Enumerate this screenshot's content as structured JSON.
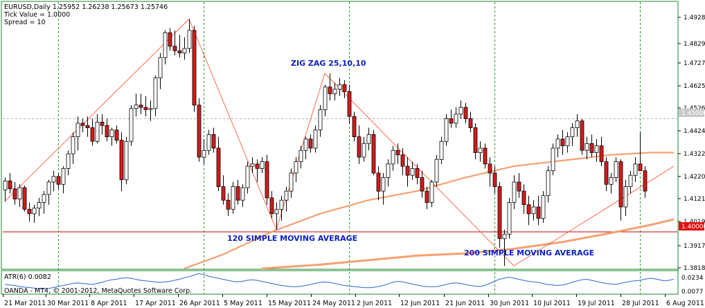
{
  "header": {
    "line1": "EURUSD,Daily  1.25952 1.26238 1.25673 1.25746",
    "line2": "Tick Value = 1.0000",
    "line3": "Spread = 10"
  },
  "annotations": {
    "zigzag": "ZIG ZAG 25,10,10",
    "sma120": "120 SIMPLE MOVING AVERAGE",
    "sma200": "200 SIMPLE MOVING AVERAGE"
  },
  "colors": {
    "frame": "#1a8a2a",
    "grid": "#1e9a2a",
    "bull": "#ffffff",
    "bear": "#d61a1a",
    "wick": "#000000",
    "zigzag": "#ff5a3a",
    "sma": "#f5a070",
    "hline": "#cc0000",
    "atr": "#2a66d6",
    "label": "#0a1ec8"
  },
  "chart_data": {
    "type": "candlestick",
    "symbol": "EURUSD",
    "timeframe": "Daily",
    "ylim": [
      1.3838,
      1.5015
    ],
    "y_ticks": [
      "1.49280",
      "1.48290",
      "1.47270",
      "1.46250",
      "1.45260",
      "1.44240",
      "1.43220",
      "1.42200",
      "1.41210",
      "1.40190",
      "1.39170",
      "1.38180"
    ],
    "x_ticks": [
      "21 Mar 2011",
      "30 Mar 2011",
      "8 Apr 2011",
      "17 Apr 2011",
      "26 Apr 2011",
      "5 May 2011",
      "15 May 2011",
      "24 May 2011",
      "2 Jun 2011",
      "12 Jun 2011",
      "21 Jun 2011",
      "30 Jun 2011",
      "10 Jul 2011",
      "19 Jul 2011",
      "28 Jul 2011",
      "6 Aug 2011"
    ],
    "price_marker_upper": "1.45000",
    "price_marker_lower": "1.40000",
    "candles": [
      {
        "o": 1.4185,
        "h": 1.424,
        "l": 1.4135,
        "c": 1.4225
      },
      {
        "o": 1.4225,
        "h": 1.426,
        "l": 1.417,
        "c": 1.419
      },
      {
        "o": 1.419,
        "h": 1.422,
        "l": 1.412,
        "c": 1.4145
      },
      {
        "o": 1.4145,
        "h": 1.421,
        "l": 1.411,
        "c": 1.4195
      },
      {
        "o": 1.4195,
        "h": 1.4205,
        "l": 1.409,
        "c": 1.41
      },
      {
        "o": 1.41,
        "h": 1.413,
        "l": 1.4045,
        "c": 1.408
      },
      {
        "o": 1.408,
        "h": 1.412,
        "l": 1.404,
        "c": 1.4105
      },
      {
        "o": 1.4105,
        "h": 1.415,
        "l": 1.407,
        "c": 1.413
      },
      {
        "o": 1.413,
        "h": 1.418,
        "l": 1.408,
        "c": 1.4165
      },
      {
        "o": 1.4165,
        "h": 1.423,
        "l": 1.412,
        "c": 1.422
      },
      {
        "o": 1.422,
        "h": 1.427,
        "l": 1.418,
        "c": 1.4245
      },
      {
        "o": 1.4245,
        "h": 1.426,
        "l": 1.419,
        "c": 1.421
      },
      {
        "o": 1.421,
        "h": 1.429,
        "l": 1.417,
        "c": 1.428
      },
      {
        "o": 1.428,
        "h": 1.436,
        "l": 1.425,
        "c": 1.4345
      },
      {
        "o": 1.4345,
        "h": 1.444,
        "l": 1.43,
        "c": 1.442
      },
      {
        "o": 1.442,
        "h": 1.451,
        "l": 1.436,
        "c": 1.448
      },
      {
        "o": 1.448,
        "h": 1.45,
        "l": 1.444,
        "c": 1.447
      },
      {
        "o": 1.447,
        "h": 1.451,
        "l": 1.442,
        "c": 1.446
      },
      {
        "o": 1.446,
        "h": 1.45,
        "l": 1.438,
        "c": 1.44
      },
      {
        "o": 1.44,
        "h": 1.452,
        "l": 1.439,
        "c": 1.4485
      },
      {
        "o": 1.4485,
        "h": 1.452,
        "l": 1.443,
        "c": 1.447
      },
      {
        "o": 1.447,
        "h": 1.45,
        "l": 1.44,
        "c": 1.442
      },
      {
        "o": 1.442,
        "h": 1.446,
        "l": 1.438,
        "c": 1.445
      },
      {
        "o": 1.445,
        "h": 1.447,
        "l": 1.439,
        "c": 1.4405
      },
      {
        "o": 1.4405,
        "h": 1.444,
        "l": 1.418,
        "c": 1.423
      },
      {
        "o": 1.423,
        "h": 1.442,
        "l": 1.421,
        "c": 1.44
      },
      {
        "o": 1.44,
        "h": 1.456,
        "l": 1.438,
        "c": 1.4545
      },
      {
        "o": 1.4545,
        "h": 1.461,
        "l": 1.451,
        "c": 1.456
      },
      {
        "o": 1.456,
        "h": 1.461,
        "l": 1.452,
        "c": 1.455
      },
      {
        "o": 1.455,
        "h": 1.46,
        "l": 1.451,
        "c": 1.454
      },
      {
        "o": 1.454,
        "h": 1.458,
        "l": 1.449,
        "c": 1.4545
      },
      {
        "o": 1.4545,
        "h": 1.469,
        "l": 1.451,
        "c": 1.468
      },
      {
        "o": 1.468,
        "h": 1.479,
        "l": 1.463,
        "c": 1.477
      },
      {
        "o": 1.477,
        "h": 1.489,
        "l": 1.474,
        "c": 1.488
      },
      {
        "o": 1.488,
        "h": 1.49,
        "l": 1.48,
        "c": 1.482
      },
      {
        "o": 1.482,
        "h": 1.489,
        "l": 1.478,
        "c": 1.48
      },
      {
        "o": 1.48,
        "h": 1.487,
        "l": 1.477,
        "c": 1.479
      },
      {
        "o": 1.479,
        "h": 1.486,
        "l": 1.476,
        "c": 1.481
      },
      {
        "o": 1.481,
        "h": 1.494,
        "l": 1.479,
        "c": 1.489
      },
      {
        "o": 1.489,
        "h": 1.491,
        "l": 1.453,
        "c": 1.456
      },
      {
        "o": 1.456,
        "h": 1.459,
        "l": 1.431,
        "c": 1.433
      },
      {
        "o": 1.433,
        "h": 1.441,
        "l": 1.43,
        "c": 1.436
      },
      {
        "o": 1.436,
        "h": 1.445,
        "l": 1.434,
        "c": 1.443
      },
      {
        "o": 1.443,
        "h": 1.446,
        "l": 1.435,
        "c": 1.437
      },
      {
        "o": 1.437,
        "h": 1.442,
        "l": 1.418,
        "c": 1.42
      },
      {
        "o": 1.42,
        "h": 1.425,
        "l": 1.412,
        "c": 1.414
      },
      {
        "o": 1.414,
        "h": 1.417,
        "l": 1.407,
        "c": 1.41
      },
      {
        "o": 1.41,
        "h": 1.422,
        "l": 1.408,
        "c": 1.42
      },
      {
        "o": 1.42,
        "h": 1.423,
        "l": 1.412,
        "c": 1.414
      },
      {
        "o": 1.414,
        "h": 1.421,
        "l": 1.411,
        "c": 1.4195
      },
      {
        "o": 1.4195,
        "h": 1.431,
        "l": 1.417,
        "c": 1.429
      },
      {
        "o": 1.429,
        "h": 1.433,
        "l": 1.426,
        "c": 1.43
      },
      {
        "o": 1.43,
        "h": 1.432,
        "l": 1.422,
        "c": 1.428
      },
      {
        "o": 1.428,
        "h": 1.433,
        "l": 1.426,
        "c": 1.431
      },
      {
        "o": 1.431,
        "h": 1.434,
        "l": 1.412,
        "c": 1.415
      },
      {
        "o": 1.415,
        "h": 1.418,
        "l": 1.406,
        "c": 1.408
      },
      {
        "o": 1.408,
        "h": 1.413,
        "l": 1.401,
        "c": 1.41
      },
      {
        "o": 1.41,
        "h": 1.416,
        "l": 1.405,
        "c": 1.414
      },
      {
        "o": 1.414,
        "h": 1.42,
        "l": 1.409,
        "c": 1.418
      },
      {
        "o": 1.418,
        "h": 1.428,
        "l": 1.415,
        "c": 1.426
      },
      {
        "o": 1.426,
        "h": 1.433,
        "l": 1.422,
        "c": 1.431
      },
      {
        "o": 1.431,
        "h": 1.438,
        "l": 1.428,
        "c": 1.436
      },
      {
        "o": 1.436,
        "h": 1.442,
        "l": 1.432,
        "c": 1.441
      },
      {
        "o": 1.441,
        "h": 1.443,
        "l": 1.435,
        "c": 1.437
      },
      {
        "o": 1.437,
        "h": 1.447,
        "l": 1.435,
        "c": 1.445
      },
      {
        "o": 1.445,
        "h": 1.456,
        "l": 1.442,
        "c": 1.454
      },
      {
        "o": 1.454,
        "h": 1.465,
        "l": 1.451,
        "c": 1.464
      },
      {
        "o": 1.464,
        "h": 1.47,
        "l": 1.458,
        "c": 1.461
      },
      {
        "o": 1.461,
        "h": 1.466,
        "l": 1.458,
        "c": 1.463
      },
      {
        "o": 1.463,
        "h": 1.468,
        "l": 1.46,
        "c": 1.465
      },
      {
        "o": 1.465,
        "h": 1.467,
        "l": 1.459,
        "c": 1.462
      },
      {
        "o": 1.462,
        "h": 1.465,
        "l": 1.448,
        "c": 1.451
      },
      {
        "o": 1.451,
        "h": 1.453,
        "l": 1.44,
        "c": 1.442
      },
      {
        "o": 1.442,
        "h": 1.447,
        "l": 1.43,
        "c": 1.433
      },
      {
        "o": 1.433,
        "h": 1.442,
        "l": 1.431,
        "c": 1.439
      },
      {
        "o": 1.439,
        "h": 1.446,
        "l": 1.436,
        "c": 1.443
      },
      {
        "o": 1.443,
        "h": 1.445,
        "l": 1.425,
        "c": 1.426
      },
      {
        "o": 1.426,
        "h": 1.429,
        "l": 1.414,
        "c": 1.418
      },
      {
        "o": 1.418,
        "h": 1.426,
        "l": 1.412,
        "c": 1.424
      },
      {
        "o": 1.424,
        "h": 1.432,
        "l": 1.42,
        "c": 1.43
      },
      {
        "o": 1.43,
        "h": 1.438,
        "l": 1.427,
        "c": 1.436
      },
      {
        "o": 1.436,
        "h": 1.439,
        "l": 1.43,
        "c": 1.434
      },
      {
        "o": 1.434,
        "h": 1.437,
        "l": 1.425,
        "c": 1.429
      },
      {
        "o": 1.429,
        "h": 1.433,
        "l": 1.42,
        "c": 1.425
      },
      {
        "o": 1.425,
        "h": 1.431,
        "l": 1.423,
        "c": 1.428
      },
      {
        "o": 1.428,
        "h": 1.43,
        "l": 1.421,
        "c": 1.424
      },
      {
        "o": 1.424,
        "h": 1.427,
        "l": 1.415,
        "c": 1.418
      },
      {
        "o": 1.418,
        "h": 1.42,
        "l": 1.41,
        "c": 1.413
      },
      {
        "o": 1.413,
        "h": 1.423,
        "l": 1.411,
        "c": 1.422
      },
      {
        "o": 1.422,
        "h": 1.434,
        "l": 1.42,
        "c": 1.432
      },
      {
        "o": 1.432,
        "h": 1.442,
        "l": 1.43,
        "c": 1.44
      },
      {
        "o": 1.44,
        "h": 1.452,
        "l": 1.438,
        "c": 1.45
      },
      {
        "o": 1.45,
        "h": 1.454,
        "l": 1.446,
        "c": 1.448
      },
      {
        "o": 1.448,
        "h": 1.455,
        "l": 1.446,
        "c": 1.452
      },
      {
        "o": 1.452,
        "h": 1.458,
        "l": 1.45,
        "c": 1.455
      },
      {
        "o": 1.455,
        "h": 1.457,
        "l": 1.448,
        "c": 1.45
      },
      {
        "o": 1.45,
        "h": 1.453,
        "l": 1.444,
        "c": 1.446
      },
      {
        "o": 1.446,
        "h": 1.448,
        "l": 1.432,
        "c": 1.435
      },
      {
        "o": 1.435,
        "h": 1.44,
        "l": 1.431,
        "c": 1.437
      },
      {
        "o": 1.437,
        "h": 1.439,
        "l": 1.428,
        "c": 1.43
      },
      {
        "o": 1.43,
        "h": 1.433,
        "l": 1.42,
        "c": 1.426
      },
      {
        "o": 1.426,
        "h": 1.429,
        "l": 1.417,
        "c": 1.42
      },
      {
        "o": 1.42,
        "h": 1.422,
        "l": 1.393,
        "c": 1.397
      },
      {
        "o": 1.397,
        "h": 1.401,
        "l": 1.385,
        "c": 1.399
      },
      {
        "o": 1.399,
        "h": 1.415,
        "l": 1.397,
        "c": 1.413
      },
      {
        "o": 1.413,
        "h": 1.425,
        "l": 1.41,
        "c": 1.422
      },
      {
        "o": 1.422,
        "h": 1.426,
        "l": 1.415,
        "c": 1.418
      },
      {
        "o": 1.418,
        "h": 1.421,
        "l": 1.408,
        "c": 1.412
      },
      {
        "o": 1.412,
        "h": 1.416,
        "l": 1.403,
        "c": 1.408
      },
      {
        "o": 1.408,
        "h": 1.414,
        "l": 1.405,
        "c": 1.411
      },
      {
        "o": 1.411,
        "h": 1.416,
        "l": 1.403,
        "c": 1.406
      },
      {
        "o": 1.406,
        "h": 1.418,
        "l": 1.404,
        "c": 1.416
      },
      {
        "o": 1.416,
        "h": 1.429,
        "l": 1.413,
        "c": 1.427
      },
      {
        "o": 1.427,
        "h": 1.439,
        "l": 1.425,
        "c": 1.437
      },
      {
        "o": 1.437,
        "h": 1.443,
        "l": 1.433,
        "c": 1.441
      },
      {
        "o": 1.441,
        "h": 1.445,
        "l": 1.434,
        "c": 1.438
      },
      {
        "o": 1.438,
        "h": 1.444,
        "l": 1.435,
        "c": 1.442
      },
      {
        "o": 1.442,
        "h": 1.448,
        "l": 1.438,
        "c": 1.446
      },
      {
        "o": 1.446,
        "h": 1.452,
        "l": 1.442,
        "c": 1.449
      },
      {
        "o": 1.449,
        "h": 1.45,
        "l": 1.434,
        "c": 1.436
      },
      {
        "o": 1.436,
        "h": 1.442,
        "l": 1.432,
        "c": 1.439
      },
      {
        "o": 1.439,
        "h": 1.443,
        "l": 1.433,
        "c": 1.435
      },
      {
        "o": 1.435,
        "h": 1.441,
        "l": 1.431,
        "c": 1.438
      },
      {
        "o": 1.438,
        "h": 1.442,
        "l": 1.429,
        "c": 1.431
      },
      {
        "o": 1.431,
        "h": 1.433,
        "l": 1.418,
        "c": 1.421
      },
      {
        "o": 1.421,
        "h": 1.426,
        "l": 1.417,
        "c": 1.424
      },
      {
        "o": 1.424,
        "h": 1.433,
        "l": 1.422,
        "c": 1.431
      },
      {
        "o": 1.431,
        "h": 1.432,
        "l": 1.405,
        "c": 1.411
      },
      {
        "o": 1.411,
        "h": 1.423,
        "l": 1.407,
        "c": 1.42
      },
      {
        "o": 1.42,
        "h": 1.427,
        "l": 1.417,
        "c": 1.425
      },
      {
        "o": 1.425,
        "h": 1.433,
        "l": 1.422,
        "c": 1.43
      },
      {
        "o": 1.43,
        "h": 1.444,
        "l": 1.427,
        "c": 1.427
      },
      {
        "o": 1.427,
        "h": 1.429,
        "l": 1.415,
        "c": 1.418
      }
    ],
    "zigzag": [
      {
        "i": 0,
        "p": 1.4135
      },
      {
        "i": 38,
        "p": 1.494
      },
      {
        "i": 56,
        "p": 1.401
      },
      {
        "i": 66,
        "p": 1.47
      },
      {
        "i": 105,
        "p": 1.385
      },
      {
        "i": 138,
        "p": 1.429
      }
    ],
    "sma120": [
      {
        "i": 37,
        "p": 1.3838
      },
      {
        "i": 45,
        "p": 1.39
      },
      {
        "i": 55,
        "p": 1.4
      },
      {
        "i": 65,
        "p": 1.408
      },
      {
        "i": 75,
        "p": 1.414
      },
      {
        "i": 85,
        "p": 1.418
      },
      {
        "i": 95,
        "p": 1.424
      },
      {
        "i": 105,
        "p": 1.429
      },
      {
        "i": 115,
        "p": 1.4315
      },
      {
        "i": 125,
        "p": 1.434
      },
      {
        "i": 133,
        "p": 1.435
      },
      {
        "i": 138,
        "p": 1.435
      }
    ],
    "sma200": [
      {
        "i": 53,
        "p": 1.3838
      },
      {
        "i": 65,
        "p": 1.3855
      },
      {
        "i": 75,
        "p": 1.3875
      },
      {
        "i": 85,
        "p": 1.3895
      },
      {
        "i": 95,
        "p": 1.3905
      },
      {
        "i": 105,
        "p": 1.3925
      },
      {
        "i": 115,
        "p": 1.3955
      },
      {
        "i": 125,
        "p": 1.3995
      },
      {
        "i": 133,
        "p": 1.403
      },
      {
        "i": 138,
        "p": 1.4055
      }
    ],
    "atr": {
      "label": "ATR(6) 0.0082",
      "ticks": [
        "0.0234",
        "0.0077"
      ],
      "range": [
        0.006,
        0.026
      ],
      "values": [
        0.014,
        0.0135,
        0.013,
        0.012,
        0.0115,
        0.011,
        0.0105,
        0.01,
        0.0098,
        0.0102,
        0.011,
        0.012,
        0.013,
        0.014,
        0.015,
        0.0155,
        0.015,
        0.0145,
        0.014,
        0.015,
        0.016,
        0.0175,
        0.0185,
        0.019,
        0.02,
        0.0205,
        0.02,
        0.019,
        0.018,
        0.0175,
        0.017,
        0.0165,
        0.016,
        0.0165,
        0.017,
        0.018,
        0.019,
        0.0205,
        0.0215,
        0.023,
        0.0245,
        0.0235,
        0.022,
        0.021,
        0.02,
        0.019,
        0.018,
        0.017,
        0.0165,
        0.017,
        0.018,
        0.0185,
        0.018,
        0.017,
        0.016,
        0.015,
        0.014,
        0.013,
        0.0125,
        0.012,
        0.0118,
        0.0122,
        0.013,
        0.014,
        0.015,
        0.016,
        0.0165,
        0.016,
        0.015,
        0.014,
        0.013,
        0.0125,
        0.012,
        0.0115,
        0.011,
        0.0108,
        0.0112,
        0.012,
        0.013,
        0.0145,
        0.016,
        0.017,
        0.0165,
        0.0155,
        0.0145,
        0.0135,
        0.0125,
        0.012,
        0.0118,
        0.012,
        0.0128,
        0.014,
        0.015,
        0.0155,
        0.015,
        0.014,
        0.013,
        0.0125,
        0.012,
        0.013,
        0.015,
        0.017,
        0.019,
        0.02,
        0.021,
        0.02,
        0.019,
        0.018,
        0.017,
        0.0165,
        0.016,
        0.015,
        0.014,
        0.0135,
        0.013,
        0.0135,
        0.0145,
        0.016,
        0.0175,
        0.0185,
        0.019,
        0.018,
        0.017,
        0.016,
        0.015,
        0.0145,
        0.014,
        0.015,
        0.016,
        0.017,
        0.0175,
        0.018,
        0.019,
        0.02,
        0.0195,
        0.0185,
        0.0175,
        0.018,
        0.019
      ]
    },
    "grid": "vertical dashed"
  },
  "watermark": "OANDA - MT4, © 2001-2012, MetaQuotes Software Corp."
}
